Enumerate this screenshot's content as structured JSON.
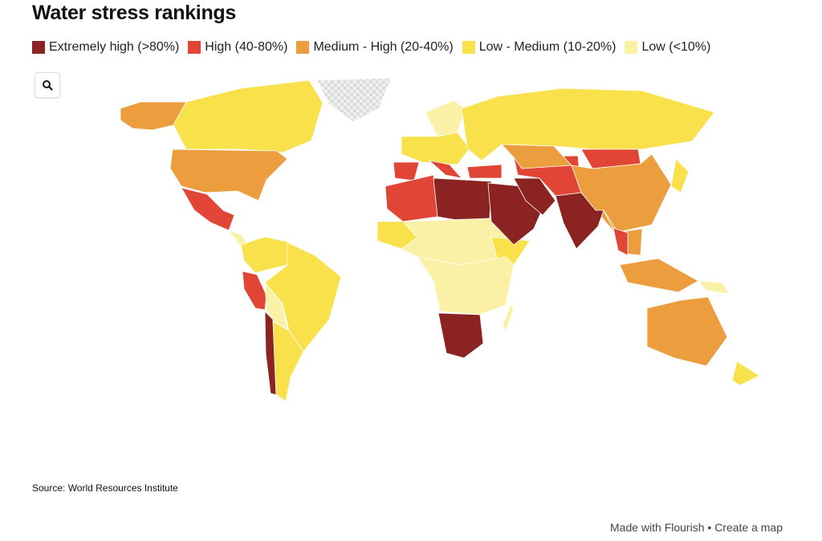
{
  "title": "Water stress rankings",
  "legend": [
    {
      "key": "extremely_high",
      "label": "Extremely high (>80%)",
      "color": "#8b2323"
    },
    {
      "key": "high",
      "label": "High (40-80%)",
      "color": "#e04535"
    },
    {
      "key": "medium_high",
      "label": "Medium - High (20-40%)",
      "color": "#ec9e3f"
    },
    {
      "key": "low_medium",
      "label": "Low - Medium (10-20%)",
      "color": "#f8e14a"
    },
    {
      "key": "low",
      "label": "Low (<10%)",
      "color": "#faf0a6"
    }
  ],
  "no_data_color": "#dcdcdc",
  "regions": {
    "alaska": "medium_high",
    "canada": "low_medium",
    "greenland": "none",
    "usa": "medium_high",
    "mexico": "high",
    "central-america": "low",
    "northern-south-america": "low_medium",
    "brazil": "low_medium",
    "peru": "high",
    "chile": "extremely_high",
    "argentina": "low_medium",
    "bolivia": "low",
    "europe": "low_medium",
    "scandinavia": "low",
    "iberia": "high",
    "italy-balkans": "high",
    "north-africa-west": "high",
    "libya-egypt": "extremely_high",
    "sahel": "low",
    "west-africa": "low_medium",
    "east-africa": "low",
    "horn-of-africa": "low_medium",
    "southern-africa": "extremely_high",
    "madagascar": "low",
    "arabia": "extremely_high",
    "iran": "extremely_high",
    "central-asia": "high",
    "russia": "low_medium",
    "kazakhstan": "medium_high",
    "mongolia": "high",
    "china": "medium_high",
    "india": "extremely_high",
    "southeast-asia": "medium_high",
    "thailand": "high",
    "indonesia": "medium_high",
    "papua": "low",
    "australia": "medium_high",
    "new-zealand": "low_medium",
    "japan": "low_medium",
    "turkey": "high"
  },
  "source": "Source: World Resources Institute",
  "footer": {
    "made_with": "Made with Flourish",
    "separator": "•",
    "create": "Create a map"
  }
}
